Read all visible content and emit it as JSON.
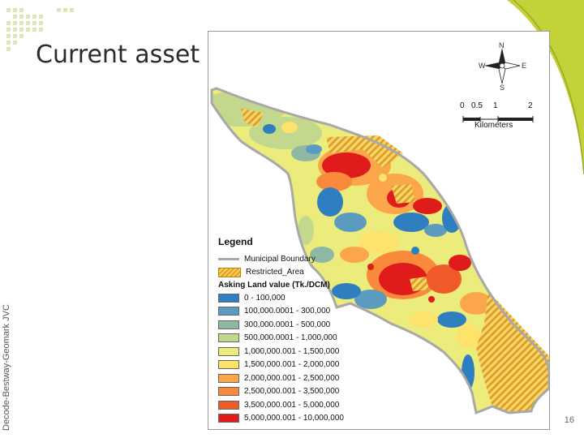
{
  "slide": {
    "title": "Current asset (land) value",
    "side_text": "Decode-Bestway-Geomark JVC",
    "page_number": "16"
  },
  "map": {
    "north_arrow": {
      "n": "N",
      "s": "S",
      "e": "E",
      "w": "W"
    },
    "scale_bar": {
      "ticks": [
        "0",
        "0.5",
        "1",
        "2"
      ],
      "unit": "Kilometers"
    },
    "legend": {
      "title": "Legend",
      "boundary_label": "Municipal Boundary",
      "restricted_label": "Restricted_Area",
      "value_title": "Asking Land value (Tk./DCM)",
      "classes": [
        {
          "label": "0 - 100,000",
          "color": "#2f7fc0"
        },
        {
          "label": "100,000.0001 - 300,000",
          "color": "#5a9bbf"
        },
        {
          "label": "300,000.0001 - 500,000",
          "color": "#8fb8a4"
        },
        {
          "label": "500,000.0001 - 1,000,000",
          "color": "#c3d88c"
        },
        {
          "label": "1,000,000.001 - 1,500,000",
          "color": "#ecec7c"
        },
        {
          "label": "1,500,000.001 - 2,000,000",
          "color": "#fde36c"
        },
        {
          "label": "2,000,000.001 - 2,500,000",
          "color": "#fca64c"
        },
        {
          "label": "2,500,000.001 - 3,500,000",
          "color": "#f98a3c"
        },
        {
          "label": "3,500,000.001 - 5,000,000",
          "color": "#ee5a2a"
        },
        {
          "label": "5,000,000.001 - 10,000,000",
          "color": "#e01b1b"
        }
      ]
    }
  }
}
